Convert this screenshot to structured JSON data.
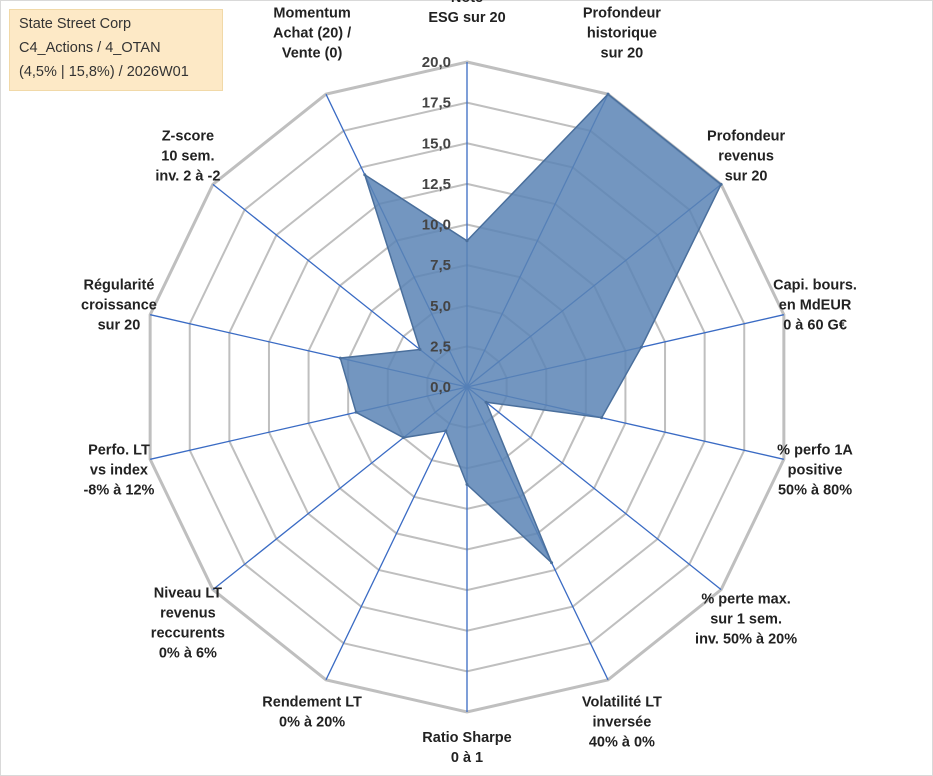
{
  "chart_data": {
    "type": "radar",
    "title_lines": [
      "State Street Corp",
      "C4_Actions / 4_OTAN",
      "(4,5% | 15,8%) / 2026W01"
    ],
    "range": [
      0,
      20
    ],
    "ticks": [
      "0,0",
      "2,5",
      "5,0",
      "7,5",
      "10,0",
      "12,5",
      "15,0",
      "17,5",
      "20,0"
    ],
    "tick_values": [
      0,
      2.5,
      5,
      7.5,
      10,
      12.5,
      15,
      17.5,
      20
    ],
    "axes": [
      {
        "label": [
          "Note",
          "ESG sur 20"
        ],
        "value": 9
      },
      {
        "label": [
          "Profondeur",
          "historique",
          "sur 20"
        ],
        "value": 20
      },
      {
        "label": [
          "Profondeur",
          "revenus",
          "sur 20"
        ],
        "value": 20
      },
      {
        "label": [
          "Capi. bours.",
          "en MdEUR",
          "0 à 60 G€"
        ],
        "value": 11
      },
      {
        "label": [
          "% perfo 1A",
          "positive",
          "50% à 80%"
        ],
        "value": 8.5
      },
      {
        "label": [
          "% perte max.",
          "sur 1 sem.",
          "inv. 50% à 20%"
        ],
        "value": 1.5
      },
      {
        "label": [
          "Volatilité LT",
          "inversée",
          "40% à 0%"
        ],
        "value": 12
      },
      {
        "label": [
          "Ratio Sharpe",
          "0 à 1"
        ],
        "value": 6
      },
      {
        "label": [
          "Rendement LT",
          "0% à 20%"
        ],
        "value": 3
      },
      {
        "label": [
          "Niveau LT",
          "revenus",
          "reccurents",
          "0% à 6%"
        ],
        "value": 5
      },
      {
        "label": [
          "Perfo. LT",
          "vs index",
          "-8% à 12%"
        ],
        "value": 7
      },
      {
        "label": [
          "Régularité",
          "croissance",
          "sur 20"
        ],
        "value": 8
      },
      {
        "label": [
          "Z-score",
          "10 sem.",
          "inv. 2 à -2"
        ],
        "value": 3.7
      },
      {
        "label": [
          "Momentum",
          "Achat (20) /",
          "Vente (0)"
        ],
        "value": 14.5
      }
    ],
    "colors": {
      "fill": "#5b84b5",
      "stroke": "#4a6f9c",
      "spoke": "#3a6bc4",
      "grid": "#bfbfbf"
    }
  }
}
